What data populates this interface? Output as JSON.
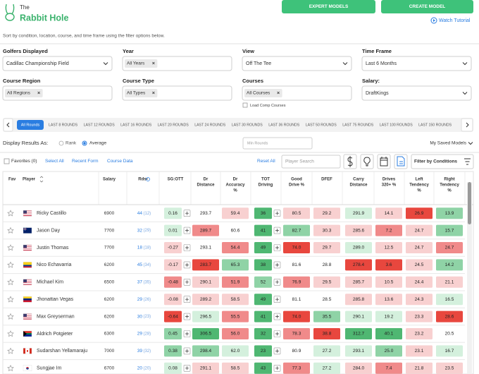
{
  "header": {
    "logo_small": "The",
    "logo_main": "Rabbit Hole",
    "buttons": [
      "EXPERT MODELS",
      "CREATE MODEL"
    ],
    "tutorial": "Watch Tutorial"
  },
  "intro": "Sort by condition, location, course, and time frame using the filter options below.",
  "filters": [
    {
      "label": "Golfers Displayed",
      "value": "Cadillac Championship Field"
    },
    {
      "label": "Year",
      "chip": "All Years"
    },
    {
      "label": "View",
      "value": "Off The Tee"
    },
    {
      "label": "Time Frame",
      "value": "Last 6 Months"
    },
    {
      "label": "Course Region",
      "chip": "All Regions"
    },
    {
      "label": "Course Type",
      "chip": "All Types"
    },
    {
      "label": "Courses",
      "chip": "All Courses"
    },
    {
      "label": "Salary:",
      "value": "DraftKings"
    }
  ],
  "load_comp": "Load Comp Courses",
  "round_tabs": [
    "All Rounds",
    "LAST 8 ROUNDS",
    "LAST 12 ROUNDS",
    "LAST 16 ROUNDS",
    "LAST 20 ROUNDS",
    "LAST 24 ROUNDS",
    "LAST 30 ROUNDS",
    "LAST 36 ROUNDS",
    "LAST 50 ROUNDS",
    "LAST 75 ROUNDS",
    "LAST 100 ROUNDS",
    "LAST 150 ROUNDS"
  ],
  "display": {
    "label": "Display Results As:",
    "options": [
      "Rank",
      "Average"
    ],
    "min_rounds": "Min Rounds",
    "saved_models": "My Saved Models"
  },
  "toolbar": {
    "favorites": "Favorites (0)",
    "links": [
      "Select All",
      "Recent Form",
      "Course Data"
    ],
    "reset": "Reset All",
    "search": "Player Search",
    "filter": "Filter by Conditions"
  },
  "table": {
    "columns": [
      [
        "Fav"
      ],
      [
        "Player"
      ],
      [
        "Salary"
      ],
      [
        "Rds•"
      ],
      [
        "SG:OTT"
      ],
      [
        "Dr",
        "Distance"
      ],
      [
        "Dr",
        "Accuracy",
        "%"
      ],
      [
        "TOT",
        "Driving"
      ],
      [
        "Good",
        "Drive %"
      ],
      [
        "DFEF"
      ],
      [
        "Carry",
        "Distance"
      ],
      [
        "Drives",
        "320+ %"
      ],
      [
        "Left",
        "Tendency",
        "%"
      ],
      [
        "Right",
        "Tendency",
        "%"
      ]
    ],
    "rows": [
      {
        "player": "Ricky Castillo",
        "salary": "6900",
        "rds": "44",
        "rds_recent": "(12)",
        "stats": [
          "0.16",
          "293.7",
          "59.4",
          "36",
          "80.5",
          "29.2",
          "291.9",
          "14.1",
          "26.9",
          "13.9"
        ],
        "colors": [
          "#d4f0dd",
          "#ffffff",
          "#f8d0d0",
          "#4fb772",
          "#f8d0d0",
          "#f8d0d0",
          "#d4f0dd",
          "#f8d0d0",
          "#e8473e",
          "#8fd3a6"
        ]
      },
      {
        "player": "Jason Day",
        "salary": "7700",
        "rds": "32",
        "rds_recent": "(29)",
        "stats": [
          "0.01",
          "289.7",
          "60.6",
          "41",
          "82.7",
          "30.3",
          "285.6",
          "7.2",
          "24.7",
          "15.7"
        ],
        "colors": [
          "#d4f0dd",
          "#f08a8a",
          "#ffffff",
          "#4fb772",
          "#8fd3a6",
          "#f8d0d0",
          "#f8d0d0",
          "#f08a8a",
          "#f8d0d0",
          "#8fd3a6"
        ]
      },
      {
        "player": "Justin Thomas",
        "salary": "7700",
        "rds": "18",
        "rds_recent": "(18)",
        "stats": [
          "-0.27",
          "293.1",
          "54.4",
          "49",
          "74.0",
          "29.7",
          "289.0",
          "12.5",
          "24.7",
          "24.7"
        ],
        "colors": [
          "#f8d0d0",
          "#ffffff",
          "#f08a8a",
          "#4fb772",
          "#e8473e",
          "#f8d0d0",
          "#d4f0dd",
          "#f8d0d0",
          "#f8d0d0",
          "#f08a8a"
        ]
      },
      {
        "player": "Nico Echavarria",
        "salary": "6200",
        "rds": "45",
        "rds_recent": "(34)",
        "stats": [
          "-0.17",
          "283.7",
          "65.3",
          "38",
          "81.6",
          "28.8",
          "278.4",
          "3.6",
          "24.5",
          "14.2"
        ],
        "colors": [
          "#f8d0d0",
          "#e8473e",
          "#8fd3a6",
          "#4fb772",
          "#ffffff",
          "#ffffff",
          "#e8473e",
          "#e8473e",
          "#f8d0d0",
          "#8fd3a6"
        ]
      },
      {
        "player": "Michael Kim",
        "salary": "6500",
        "rds": "37",
        "rds_recent": "(35)",
        "stats": [
          "-0.48",
          "290.1",
          "51.9",
          "52",
          "76.9",
          "29.5",
          "285.7",
          "10.5",
          "24.4",
          "21.1"
        ],
        "colors": [
          "#f08a8a",
          "#f8d0d0",
          "#f08a8a",
          "#8fd3a6",
          "#f08a8a",
          "#f8d0d0",
          "#f8d0d0",
          "#f8d0d0",
          "#f8d0d0",
          "#f8d0d0"
        ]
      },
      {
        "player": "Jhonattan Vegas",
        "salary": "6200",
        "rds": "29",
        "rds_recent": "(26)",
        "stats": [
          "-0.08",
          "289.2",
          "58.5",
          "49",
          "81.1",
          "28.5",
          "285.8",
          "13.6",
          "24.3",
          "16.5"
        ],
        "colors": [
          "#f8d0d0",
          "#f8d0d0",
          "#f8d0d0",
          "#4fb772",
          "#ffffff",
          "#ffffff",
          "#f8d0d0",
          "#f8d0d0",
          "#f8d0d0",
          "#d4f0dd"
        ]
      },
      {
        "player": "Max Greyserman",
        "salary": "6200",
        "rds": "30",
        "rds_recent": "(23)",
        "stats": [
          "-0.64",
          "296.5",
          "55.5",
          "41",
          "74.0",
          "35.5",
          "290.1",
          "19.2",
          "23.3",
          "28.6"
        ],
        "colors": [
          "#e8473e",
          "#d4f0dd",
          "#f08a8a",
          "#4fb772",
          "#e8473e",
          "#8fd3a6",
          "#d4f0dd",
          "#d4f0dd",
          "#f8d0d0",
          "#e8473e"
        ]
      },
      {
        "player": "Aldrich Potgieter",
        "salary": "6300",
        "rds": "29",
        "rds_recent": "(28)",
        "stats": [
          "0.45",
          "306.5",
          "56.0",
          "32",
          "78.3",
          "38.8",
          "312.7",
          "40.1",
          "23.2",
          "20.5"
        ],
        "colors": [
          "#8fd3a6",
          "#4fb772",
          "#f08a8a",
          "#4fb772",
          "#f08a8a",
          "#e8473e",
          "#4fb772",
          "#4fb772",
          "#f8d0d0",
          "#ffffff"
        ]
      },
      {
        "player": "Sudarshan Yellamaraju",
        "salary": "7000",
        "rds": "39",
        "rds_recent": "(32)",
        "stats": [
          "0.38",
          "298.4",
          "62.0",
          "23",
          "80.9",
          "27.2",
          "293.1",
          "25.0",
          "23.1",
          "16.7"
        ],
        "colors": [
          "#8fd3a6",
          "#8fd3a6",
          "#d4f0dd",
          "#4fb772",
          "#ffffff",
          "#d4f0dd",
          "#d4f0dd",
          "#8fd3a6",
          "#f8d0d0",
          "#d4f0dd"
        ]
      },
      {
        "player": "Sungjae Im",
        "salary": "6700",
        "rds": "20",
        "rds_recent": "(20)",
        "stats": [
          "0.08",
          "291.1",
          "58.5",
          "43",
          "77.3",
          "27.2",
          "284.0",
          "7.4",
          "21.8",
          "23.5"
        ],
        "colors": [
          "#d4f0dd",
          "#f8d0d0",
          "#f8d0d0",
          "#4fb772",
          "#f08a8a",
          "#d4f0dd",
          "#f8d0d0",
          "#f08a8a",
          "#f8d0d0",
          "#f8d0d0"
        ]
      }
    ]
  }
}
